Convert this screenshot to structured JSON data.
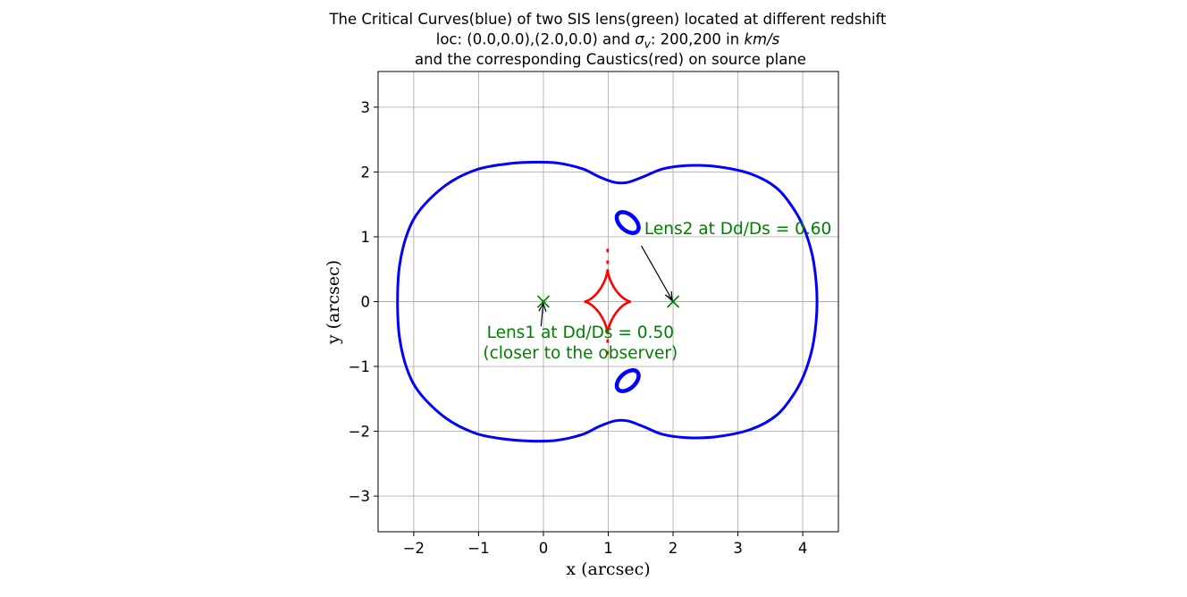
{
  "chart_data": {
    "type": "scatter",
    "title": {
      "line1": "The Critical Curves(blue) of two SIS lens(green) located at different redshift",
      "line2_prefix": "loc: (0.0,0.0),(2.0,0.0) and ",
      "line2_sigma": "σ",
      "line2_sub": "v",
      "line2_middle": ": 200,200 in ",
      "line2_unit": "km/s",
      "line3": "and the corresponding Caustics(red) on source plane"
    },
    "xlabel": "x (arcsec)",
    "ylabel": "y (arcsec)",
    "xlim": [
      -2.55,
      4.55
    ],
    "ylim": [
      -3.55,
      3.55
    ],
    "xticks": [
      -2,
      -1,
      0,
      1,
      2,
      3,
      4
    ],
    "yticks": [
      -3,
      -2,
      -1,
      0,
      1,
      2,
      3
    ],
    "grid": true,
    "colors": {
      "critical": "#0000ff",
      "caustic": "#ff0000",
      "lens": "#008000",
      "grid": "#b0b0b0"
    },
    "lenses": [
      {
        "x": 0.0,
        "y": 0.0,
        "label": "Lens1 at Dd/Ds = 0.50",
        "label2": " (closer to the observer)",
        "text_x": 0.57,
        "text_y": -0.56
      },
      {
        "x": 2.0,
        "y": 0.0,
        "label": "Lens2 at Dd/Ds = 0.60",
        "label2": "",
        "text_x": 3.0,
        "text_y": 1.04
      }
    ],
    "outer_critical_curve": [
      [
        4.22,
        0.0
      ],
      [
        4.17,
        0.6
      ],
      [
        4.05,
        1.05
      ],
      [
        3.88,
        1.4
      ],
      [
        3.6,
        1.75
      ],
      [
        3.2,
        1.97
      ],
      [
        2.7,
        2.08
      ],
      [
        2.25,
        2.1
      ],
      [
        1.85,
        2.05
      ],
      [
        1.55,
        1.93
      ],
      [
        1.3,
        1.84
      ],
      [
        1.1,
        1.84
      ],
      [
        0.85,
        1.93
      ],
      [
        0.6,
        2.05
      ],
      [
        0.2,
        2.14
      ],
      [
        -0.2,
        2.15
      ],
      [
        -0.6,
        2.12
      ],
      [
        -1.05,
        2.03
      ],
      [
        -1.5,
        1.8
      ],
      [
        -1.9,
        1.42
      ],
      [
        -2.1,
        1.05
      ],
      [
        -2.22,
        0.55
      ],
      [
        -2.25,
        0.0
      ],
      [
        -2.22,
        -0.55
      ],
      [
        -2.1,
        -1.05
      ],
      [
        -1.9,
        -1.42
      ],
      [
        -1.5,
        -1.8
      ],
      [
        -1.05,
        -2.03
      ],
      [
        -0.6,
        -2.12
      ],
      [
        -0.2,
        -2.15
      ],
      [
        0.2,
        -2.14
      ],
      [
        0.6,
        -2.05
      ],
      [
        0.85,
        -1.93
      ],
      [
        1.1,
        -1.84
      ],
      [
        1.3,
        -1.84
      ],
      [
        1.55,
        -1.93
      ],
      [
        1.85,
        -2.05
      ],
      [
        2.25,
        -2.1
      ],
      [
        2.7,
        -2.08
      ],
      [
        3.2,
        -1.97
      ],
      [
        3.6,
        -1.75
      ],
      [
        3.88,
        -1.4
      ],
      [
        4.05,
        -1.05
      ],
      [
        4.17,
        -0.6
      ]
    ],
    "inner_critical_curves": [
      {
        "cx": 1.3,
        "cy": 1.22,
        "rx": 0.2,
        "ry": 0.12,
        "rotate_deg": 42
      },
      {
        "cx": 1.3,
        "cy": -1.22,
        "rx": 0.2,
        "ry": 0.12,
        "rotate_deg": -42
      }
    ],
    "caustic": {
      "cx": 0.99,
      "cy": 0.0,
      "half_width": 0.36,
      "half_height": 0.5
    },
    "caustic_tails": [
      {
        "x": 0.99,
        "y1": 0.58,
        "y2": 0.88
      },
      {
        "x": 0.99,
        "y1": -0.58,
        "y2": -0.88
      }
    ]
  }
}
